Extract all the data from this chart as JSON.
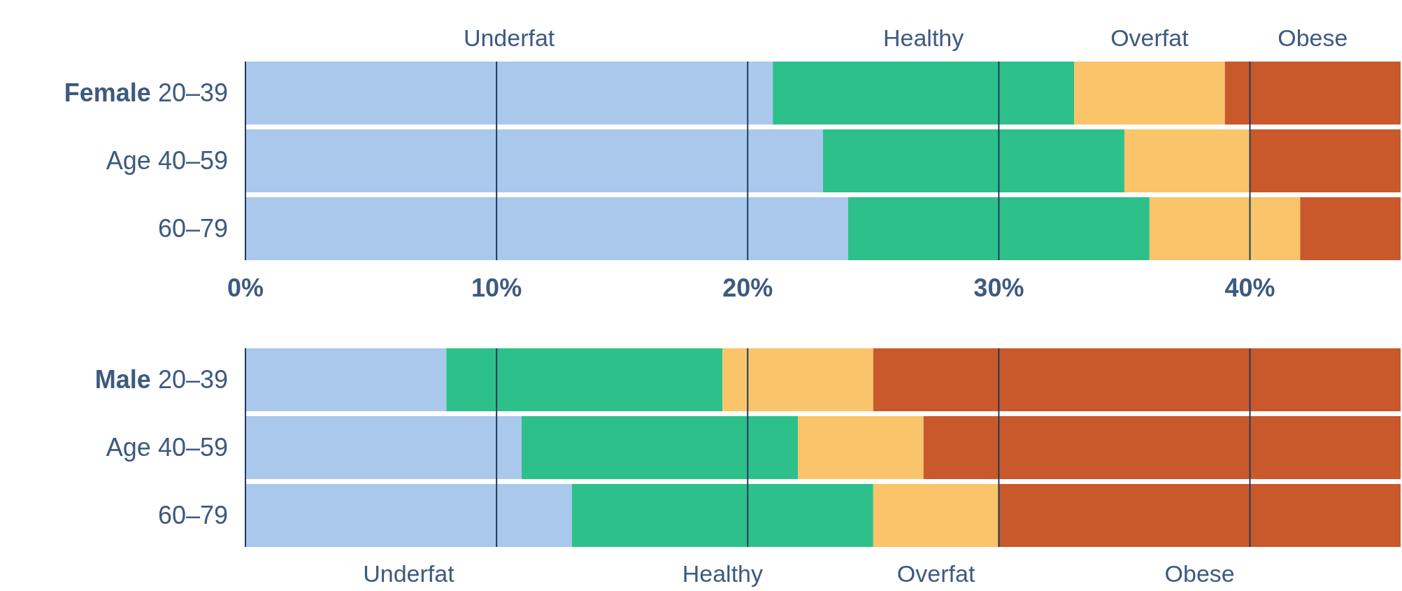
{
  "chart_data": [
    {
      "type": "bar",
      "orientation": "horizontal",
      "stacked": true,
      "categories": [
        "Female 20–39",
        "Age 40–59",
        "60–79"
      ],
      "series": [
        {
          "name": "Underfat",
          "color": "#a9c8ec",
          "values": [
            21,
            23,
            24
          ]
        },
        {
          "name": "Healthy",
          "color": "#2ec08a",
          "values": [
            12,
            12,
            12
          ]
        },
        {
          "name": "Overfat",
          "color": "#f9c46a",
          "values": [
            6,
            5,
            6
          ]
        },
        {
          "name": "Obese",
          "color": "#c9592a",
          "values": [
            7,
            6,
            4
          ]
        }
      ],
      "xlim": [
        0,
        46
      ],
      "xticks": [
        {
          "value": 0,
          "label": "0%"
        },
        {
          "value": 10,
          "label": "10%"
        },
        {
          "value": 20,
          "label": "20%"
        },
        {
          "value": 30,
          "label": "30%"
        },
        {
          "value": 40,
          "label": "40%"
        }
      ],
      "grid": "x",
      "legend": "top"
    },
    {
      "type": "bar",
      "orientation": "horizontal",
      "stacked": true,
      "categories": [
        "Male 20–39",
        "Age 40–59",
        "60–79"
      ],
      "series": [
        {
          "name": "Underfat",
          "color": "#a9c8ec",
          "values": [
            8,
            11,
            13
          ]
        },
        {
          "name": "Healthy",
          "color": "#2ec08a",
          "values": [
            11,
            11,
            12
          ]
        },
        {
          "name": "Overfat",
          "color": "#f9c46a",
          "values": [
            6,
            5,
            5
          ]
        },
        {
          "name": "Obese",
          "color": "#c9592a",
          "values": [
            21,
            19,
            16
          ]
        }
      ],
      "xlim": [
        0,
        46
      ],
      "xticks": [
        {
          "value": 0,
          "label": null
        },
        {
          "value": 10,
          "label": null
        },
        {
          "value": 20,
          "label": null
        },
        {
          "value": 30,
          "label": null
        },
        {
          "value": 40,
          "label": null
        }
      ],
      "grid": "x",
      "legend": "bottom",
      "tick_labels": "y"
    }
  ]
}
